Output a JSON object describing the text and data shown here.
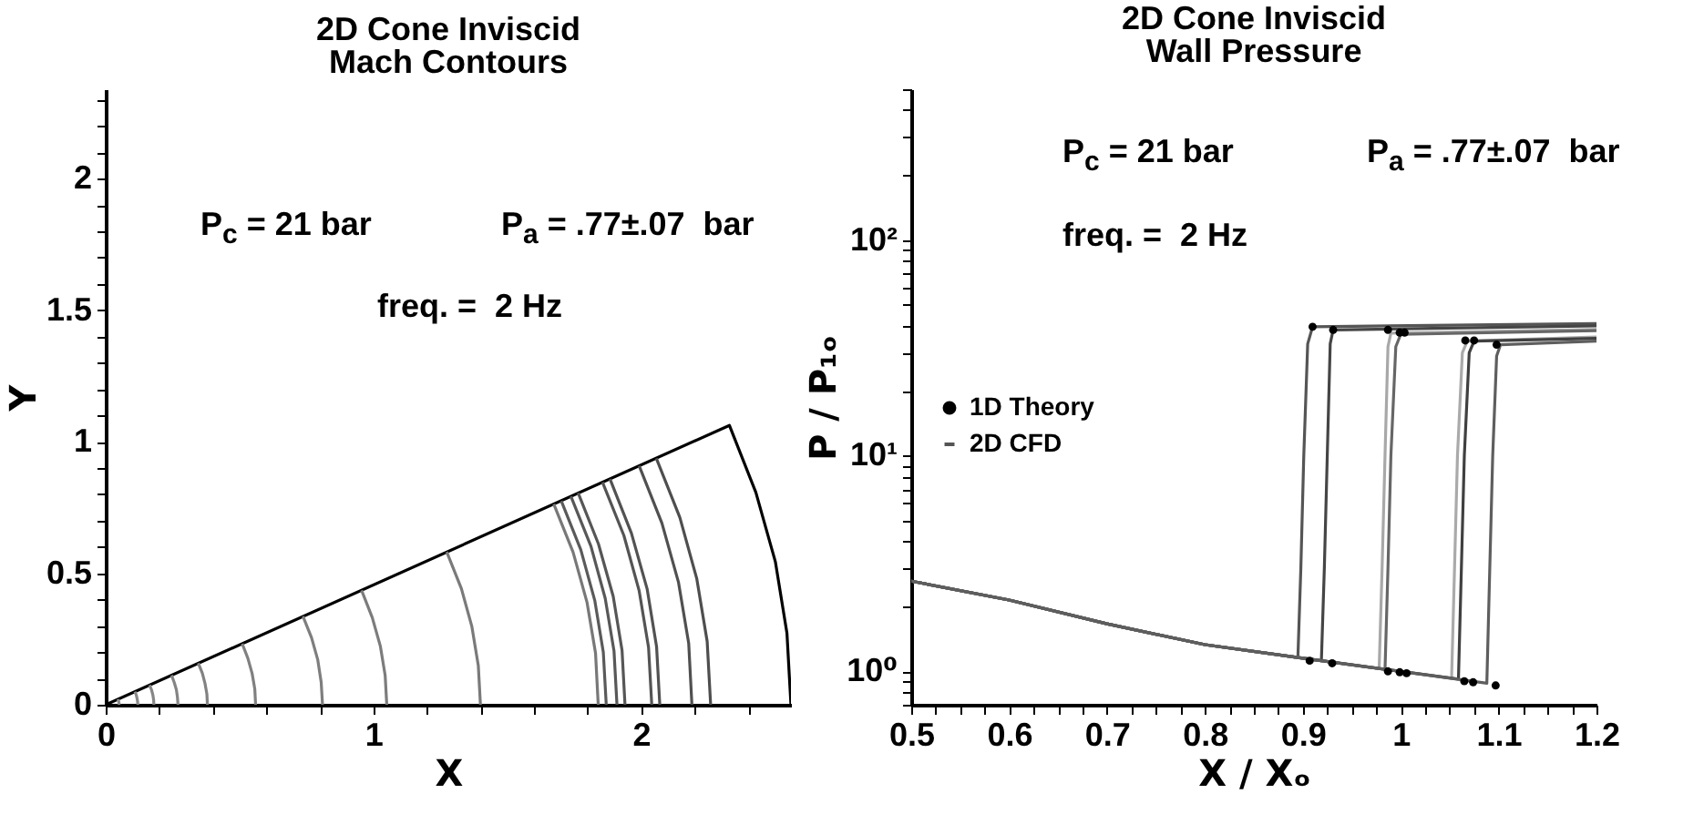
{
  "chart_data": [
    {
      "type": "line",
      "title": "2D Cone Inviscid",
      "subtitle": "Mach Contours",
      "xlabel": "X",
      "ylabel": "Y",
      "annotations": [
        "P$_{c}$ = 21 bar",
        "P$_{a}$ = .77±.07  bar",
        "freq. =  2 Hz"
      ],
      "xlim": [
        0,
        2.56
      ],
      "ylim": [
        0,
        2.34
      ],
      "xticks": [
        0,
        {
          "value": 0.2,
          "label": null
        },
        {
          "value": 0.4,
          "label": null
        },
        {
          "value": 0.6,
          "label": null
        },
        {
          "value": 0.8,
          "label": null
        },
        1,
        {
          "value": 1.2,
          "label": null
        },
        {
          "value": 1.4,
          "label": null
        },
        {
          "value": 1.6,
          "label": null
        },
        {
          "value": 1.8,
          "label": null
        },
        2,
        {
          "value": 2.2,
          "label": null
        },
        {
          "value": 2.4,
          "label": null
        }
      ],
      "yticks": [
        0,
        {
          "value": 0.1,
          "label": null
        },
        {
          "value": 0.2,
          "label": null
        },
        {
          "value": 0.3,
          "label": null
        },
        {
          "value": 0.4,
          "label": null
        },
        0.5,
        {
          "value": 0.6,
          "label": null
        },
        {
          "value": 0.7,
          "label": null
        },
        {
          "value": 0.8,
          "label": null
        },
        {
          "value": 0.9,
          "label": null
        },
        1,
        {
          "value": 1.1,
          "label": null
        },
        {
          "value": 1.2,
          "label": null
        },
        {
          "value": 1.3,
          "label": null
        },
        {
          "value": 1.4,
          "label": null
        },
        1.5,
        {
          "value": 1.6,
          "label": null
        },
        {
          "value": 1.7,
          "label": null
        },
        {
          "value": 1.8,
          "label": null
        },
        {
          "value": 1.9,
          "label": null
        },
        2,
        {
          "value": 2.1,
          "label": null
        },
        {
          "value": 2.2,
          "label": null
        },
        {
          "value": 2.3,
          "label": null
        }
      ],
      "series": [
        {
          "color": "#000000",
          "x": [
            0,
            2.33,
            2.429,
            2.502,
            2.545,
            2.56
          ],
          "values": [
            0,
            1.062,
            0.807,
            0.543,
            0.273,
            0
          ]
        },
        {
          "color": "#8a8a8a",
          "x": [
            0.05,
            0.05,
            0.049,
            0.047,
            0.046
          ],
          "values": [
            0,
            0.005,
            0.011,
            0.016,
            0.021
          ]
        },
        {
          "color": "#888888",
          "x": [
            0.12,
            0.119,
            0.117,
            0.114,
            0.109
          ],
          "values": [
            0,
            0.013,
            0.025,
            0.038,
            0.05
          ]
        },
        {
          "color": "#868686",
          "x": [
            0.18,
            0.179,
            0.176,
            0.171,
            0.164
          ],
          "values": [
            0,
            0.019,
            0.038,
            0.057,
            0.075
          ]
        },
        {
          "color": "#848484",
          "x": [
            0.27,
            0.268,
            0.264,
            0.256,
            0.246
          ],
          "values": [
            0,
            0.029,
            0.057,
            0.085,
            0.112
          ]
        },
        {
          "color": "#828282",
          "x": [
            0.38,
            0.378,
            0.371,
            0.361,
            0.346
          ],
          "values": [
            0,
            0.041,
            0.081,
            0.12,
            0.158
          ]
        },
        {
          "color": "#808080",
          "x": [
            0.56,
            0.557,
            0.547,
            0.531,
            0.51
          ],
          "values": [
            0,
            0.06,
            0.119,
            0.177,
            0.232
          ]
        },
        {
          "color": "#7e7e7e",
          "x": [
            0.81,
            0.805,
            0.792,
            0.769,
            0.737
          ],
          "values": [
            0,
            0.086,
            0.172,
            0.255,
            0.336
          ]
        },
        {
          "color": "#7c7c7c",
          "x": [
            1.05,
            1.044,
            1.026,
            0.996,
            0.956
          ],
          "values": [
            0,
            0.112,
            0.223,
            0.331,
            0.435
          ]
        },
        {
          "color": "#7a7a7a",
          "x": [
            1.4,
            1.392,
            1.368,
            1.329,
            1.274
          ],
          "values": [
            0,
            0.149,
            0.297,
            0.441,
            0.581
          ]
        },
        {
          "color": "#787878",
          "x": [
            1.84,
            1.83,
            1.798,
            1.746,
            1.674
          ],
          "values": [
            0,
            0.196,
            0.39,
            0.58,
            0.763
          ]
        },
        {
          "color": "#5a5a5a",
          "x": [
            1.87,
            1.859,
            1.827,
            1.775,
            1.702
          ],
          "values": [
            0,
            0.2,
            0.397,
            0.589,
            0.775
          ]
        },
        {
          "color": "#585858",
          "x": [
            1.91,
            1.899,
            1.866,
            1.813,
            1.738
          ],
          "values": [
            0,
            0.204,
            0.405,
            0.602,
            0.792
          ]
        },
        {
          "color": "#565656",
          "x": [
            1.94,
            1.929,
            1.896,
            1.841,
            1.765
          ],
          "values": [
            0,
            0.207,
            0.412,
            0.611,
            0.805
          ]
        },
        {
          "color": "#545454",
          "x": [
            2.04,
            2.028,
            1.993,
            1.936,
            1.856
          ],
          "values": [
            0,
            0.218,
            0.433,
            0.643,
            0.846
          ]
        },
        {
          "color": "#525252",
          "x": [
            2.07,
            2.058,
            2.023,
            1.964,
            1.884
          ],
          "values": [
            0,
            0.221,
            0.439,
            0.652,
            0.858
          ]
        },
        {
          "color": "#505050",
          "x": [
            2.19,
            2.178,
            2.14,
            2.078,
            1.993
          ],
          "values": [
            0,
            0.234,
            0.465,
            0.69,
            0.908
          ]
        },
        {
          "color": "#4e4e4e",
          "x": [
            2.26,
            2.247,
            2.208,
            2.145,
            2.057
          ],
          "values": [
            0,
            0.241,
            0.48,
            0.712,
            0.937
          ]
        }
      ]
    },
    {
      "type": "line",
      "title": "2D Cone Inviscid",
      "subtitle": "Wall Pressure",
      "xlabel": "X / Xₒ",
      "ylabel": "P / P₁ₒ",
      "annotations": [
        "P$_{c}$ = 21 bar",
        "P$_{a}$ = .77±.07  bar",
        "freq. =  2 Hz"
      ],
      "log": "y",
      "legend": "left",
      "xlim": [
        0.5,
        1.2
      ],
      "ylim": [
        0.7,
        500
      ],
      "xticks": [
        0.5,
        {
          "value": 0.525,
          "label": null
        },
        {
          "value": 0.55,
          "label": null
        },
        {
          "value": 0.575,
          "label": null
        },
        0.6,
        {
          "value": 0.625,
          "label": null
        },
        {
          "value": 0.65,
          "label": null
        },
        {
          "value": 0.675,
          "label": null
        },
        0.7,
        {
          "value": 0.725,
          "label": null
        },
        {
          "value": 0.75,
          "label": null
        },
        {
          "value": 0.775,
          "label": null
        },
        0.8,
        {
          "value": 0.825,
          "label": null
        },
        {
          "value": 0.85,
          "label": null
        },
        {
          "value": 0.875,
          "label": null
        },
        0.9,
        {
          "value": 0.925,
          "label": null
        },
        {
          "value": 0.95,
          "label": null
        },
        {
          "value": 0.975,
          "label": null
        },
        1,
        {
          "value": 1.025,
          "label": null
        },
        {
          "value": 1.05,
          "label": null
        },
        {
          "value": 1.075,
          "label": null
        },
        1.1,
        {
          "value": 1.125,
          "label": null
        },
        {
          "value": 1.15,
          "label": null
        },
        {
          "value": 1.175,
          "label": null
        },
        1.2
      ],
      "yticks": [
        {
          "value": 0.7,
          "label": null
        },
        {
          "value": 0.8,
          "label": null
        },
        {
          "value": 0.9,
          "label": null
        },
        {
          "value": 1,
          "label": "10⁰"
        },
        {
          "value": 2,
          "label": null
        },
        {
          "value": 3,
          "label": null
        },
        {
          "value": 4,
          "label": null
        },
        {
          "value": 5,
          "label": null
        },
        {
          "value": 6,
          "label": null
        },
        {
          "value": 7,
          "label": null
        },
        {
          "value": 8,
          "label": null
        },
        {
          "value": 9,
          "label": null
        },
        {
          "value": 10,
          "label": "10¹"
        },
        {
          "value": 20,
          "label": null
        },
        {
          "value": 30,
          "label": null
        },
        {
          "value": 40,
          "label": null
        },
        {
          "value": 50,
          "label": null
        },
        {
          "value": 60,
          "label": null
        },
        {
          "value": 70,
          "label": null
        },
        {
          "value": 80,
          "label": null
        },
        {
          "value": 90,
          "label": null
        },
        {
          "value": 100,
          "label": "10²"
        },
        {
          "value": 200,
          "label": null
        },
        {
          "value": 300,
          "label": null
        },
        {
          "value": 400,
          "label": null
        },
        {
          "value": 500,
          "label": null
        }
      ],
      "series": [
        {
          "name": "1D Theory",
          "type": "scatter",
          "marker": "circle",
          "color": "#000000",
          "x": [
            0.91,
            0.931,
            0.987,
            0.999,
            1.004,
            1.066,
            1.075,
            1.098,
            0.907,
            0.93,
            0.987,
            0.999,
            1.006,
            1.065,
            1.074,
            1.097
          ],
          "values": [
            39.6,
            38.3,
            38.3,
            37.2,
            37.2,
            34.2,
            34.2,
            32.7,
            1.12,
            1.09,
            1.0,
            0.99,
            0.98,
            0.9,
            0.89,
            0.86
          ]
        },
        {
          "name": "2D CFD",
          "color": "#555555",
          "x": [
            0.5,
            0.6,
            0.7,
            0.8,
            0.895,
            0.898,
            0.901,
            0.905,
            0.91,
            1.2
          ],
          "values": [
            2.62,
            2.14,
            1.66,
            1.33,
            1.16,
            3,
            10,
            33,
            39.6,
            41
          ]
        },
        {
          "color": "#454545",
          "x": [
            0.5,
            0.6,
            0.7,
            0.8,
            0.9,
            0.919,
            0.922,
            0.925,
            0.928,
            0.931,
            1.2
          ],
          "values": [
            2.62,
            2.14,
            1.66,
            1.33,
            1.15,
            1.12,
            3,
            10,
            33,
            38.3,
            40
          ]
        },
        {
          "color": "#a8a8a8",
          "x": [
            0.5,
            0.6,
            0.7,
            0.8,
            0.9,
            0.978,
            0.981,
            0.984,
            0.987,
            0.99,
            1.2
          ],
          "values": [
            2.62,
            2.14,
            1.66,
            1.33,
            1.15,
            1.03,
            3,
            10,
            32,
            37,
            38.5
          ]
        },
        {
          "color": "#666666",
          "x": [
            0.5,
            0.6,
            0.7,
            0.8,
            0.9,
            0.984,
            0.987,
            0.99,
            0.995,
            1.0,
            1.2
          ],
          "values": [
            2.62,
            2.14,
            1.66,
            1.33,
            1.15,
            1.02,
            3,
            10,
            32,
            36.5,
            38
          ]
        },
        {
          "color": "#aaaaaa",
          "x": [
            0.5,
            0.6,
            0.7,
            0.8,
            0.9,
            1.0,
            1.052,
            1.055,
            1.058,
            1.063,
            1.068,
            1.2
          ],
          "values": [
            2.62,
            2.14,
            1.66,
            1.33,
            1.15,
            1.0,
            0.93,
            3,
            10,
            30,
            34,
            35.5
          ]
        },
        {
          "color": "#404040",
          "x": [
            0.5,
            0.6,
            0.7,
            0.8,
            0.9,
            1.0,
            1.059,
            1.062,
            1.065,
            1.07,
            1.075,
            1.2
          ],
          "values": [
            2.62,
            2.14,
            1.66,
            1.33,
            1.15,
            1.0,
            0.92,
            3,
            10,
            30,
            34,
            35
          ]
        },
        {
          "color": "#5e5e5e",
          "x": [
            0.5,
            0.6,
            0.7,
            0.8,
            0.9,
            1.0,
            1.088,
            1.091,
            1.094,
            1.098,
            1.102,
            1.2
          ],
          "values": [
            2.62,
            2.14,
            1.66,
            1.33,
            1.15,
            1.0,
            0.88,
            3,
            10,
            29,
            32.7,
            34
          ]
        }
      ]
    }
  ]
}
